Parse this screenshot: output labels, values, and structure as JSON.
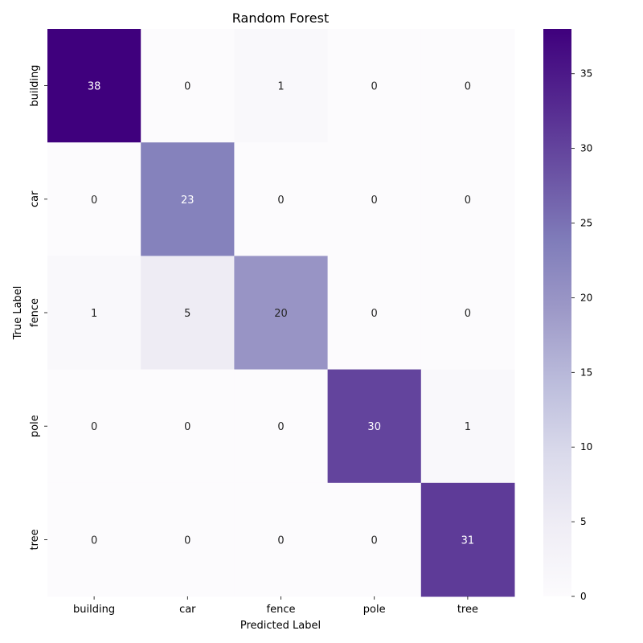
{
  "chart_data": {
    "type": "heatmap",
    "title": "Random Forest",
    "xlabel": "Predicted Label",
    "ylabel": "True Label",
    "x_categories": [
      "building",
      "car",
      "fence",
      "pole",
      "tree"
    ],
    "y_categories": [
      "building",
      "car",
      "fence",
      "pole",
      "tree"
    ],
    "values": [
      [
        38,
        0,
        1,
        0,
        0
      ],
      [
        0,
        23,
        0,
        0,
        0
      ],
      [
        1,
        5,
        20,
        0,
        0
      ],
      [
        0,
        0,
        0,
        30,
        1
      ],
      [
        0,
        0,
        0,
        0,
        31
      ]
    ],
    "colormap": "Purples",
    "colors": {
      "low": "#fcfbfd",
      "high": "#3f007d"
    },
    "color_range": [
      0,
      38
    ],
    "colorbar_ticks": [
      0,
      5,
      10,
      15,
      20,
      25,
      30,
      35
    ],
    "annotations": true,
    "grid": false
  }
}
